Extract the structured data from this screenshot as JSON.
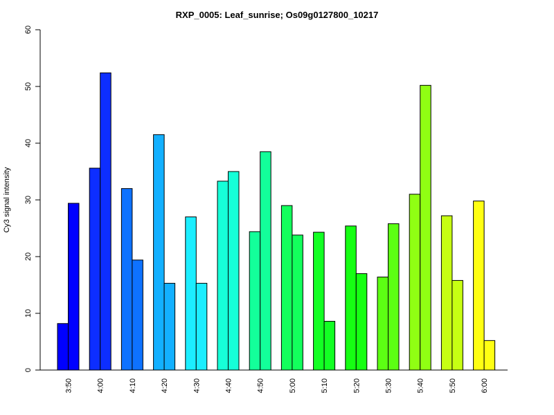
{
  "chart_data": {
    "type": "bar",
    "title": "RXP_0005: Leaf_sunrise; Os09g0127800_10217",
    "xlabel": "",
    "ylabel": "Cy3 signal intensity",
    "ylim": [
      0,
      60
    ],
    "yticks": [
      0,
      10,
      20,
      30,
      40,
      50,
      60
    ],
    "grid": false,
    "legend": "none",
    "categories": [
      "3:50",
      "4:00",
      "4:10",
      "4:20",
      "4:30",
      "4:40",
      "4:50",
      "5:00",
      "5:10",
      "5:20",
      "5:30",
      "5:40",
      "5:50",
      "6:00"
    ],
    "series": [
      {
        "values": [
          8.2,
          35.6,
          32.0,
          41.5,
          27.0,
          33.3,
          24.4,
          29.0,
          24.3,
          25.4,
          16.4,
          31.0,
          27.2,
          29.8
        ]
      },
      {
        "values": [
          29.4,
          52.4,
          19.4,
          15.3,
          15.3,
          35.0,
          38.5,
          23.8,
          8.6,
          17.0,
          25.8,
          50.2,
          15.8,
          5.2
        ]
      }
    ],
    "colors": [
      "#0000FF",
      "#0D2EFF",
      "#0E72FF",
      "#13B0FF",
      "#1CEEFF",
      "#16FFD8",
      "#13FF9A",
      "#13FF5C",
      "#13FF24",
      "#16FF13",
      "#5CFF13",
      "#90FF13",
      "#C7FF13",
      "#FFFF13"
    ]
  }
}
